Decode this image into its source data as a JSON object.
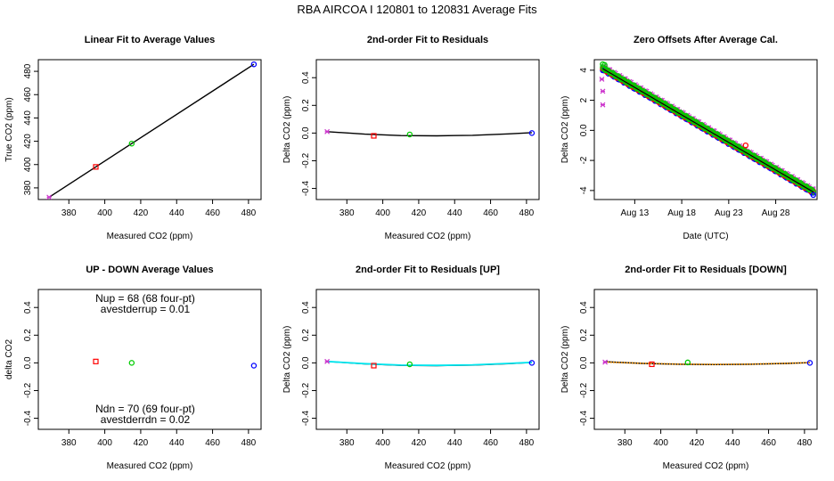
{
  "figure_title": "RBA   AIRCOA I   120801 to 120831    Average Fits",
  "colors": {
    "red": "#ff0000",
    "green": "#00cc00",
    "blue": "#0000ff",
    "magenta": "#cc33cc",
    "cyan": "#00e5ee",
    "black": "#000000",
    "orange": "#ff9900"
  },
  "chart_data": [
    {
      "type": "scatter",
      "title": "Linear Fit to Average Values",
      "xlabel": "Measured CO2 (ppm)",
      "ylabel": "True CO2 (ppm)",
      "xlim": [
        363,
        487
      ],
      "ylim": [
        370,
        490
      ],
      "xticks": [
        380,
        400,
        420,
        440,
        460,
        480
      ],
      "yticks": [
        380,
        400,
        420,
        440,
        460,
        480
      ],
      "lines": [
        {
          "x": [
            369,
            483
          ],
          "y": [
            372,
            486
          ],
          "color": "black"
        }
      ],
      "points": [
        {
          "x": 369,
          "y": 372,
          "color": "magenta",
          "marker": "x"
        },
        {
          "x": 395,
          "y": 398,
          "color": "red",
          "marker": "square"
        },
        {
          "x": 415,
          "y": 418,
          "color": "green",
          "marker": "circle"
        },
        {
          "x": 483,
          "y": 486,
          "color": "blue",
          "marker": "circle"
        }
      ]
    },
    {
      "type": "scatter",
      "title": "2nd-order Fit to Residuals",
      "xlabel": "Measured CO2 (ppm)",
      "ylabel": "Delta CO2 (ppm)",
      "xlim": [
        363,
        487
      ],
      "ylim": [
        -0.48,
        0.53
      ],
      "xticks": [
        380,
        400,
        420,
        440,
        460,
        480
      ],
      "yticks": [
        -0.4,
        -0.2,
        0.0,
        0.2,
        0.4
      ],
      "curves": [
        {
          "x": [
            369,
            390,
            410,
            430,
            450,
            470,
            483
          ],
          "y": [
            0.01,
            -0.008,
            -0.018,
            -0.02,
            -0.016,
            -0.006,
            0.003
          ],
          "color": "black"
        }
      ],
      "points": [
        {
          "x": 369,
          "y": 0.01,
          "color": "magenta",
          "marker": "x"
        },
        {
          "x": 395,
          "y": -0.02,
          "color": "red",
          "marker": "square"
        },
        {
          "x": 415,
          "y": -0.01,
          "color": "green",
          "marker": "circle"
        },
        {
          "x": 483,
          "y": 0.0,
          "color": "blue",
          "marker": "circle"
        }
      ]
    },
    {
      "type": "scatter",
      "title": "Zero Offsets After Average Cal.",
      "xlabel": "Date (UTC)",
      "ylabel": "Delta CO2 (ppm)",
      "xlim": [
        8.7,
        32.4
      ],
      "ylim": [
        -4.6,
        4.7
      ],
      "xticks": [
        13,
        18,
        23,
        28
      ],
      "xticklabels": [
        "Aug 13",
        "Aug 18",
        "Aug 23",
        "Aug 28"
      ],
      "yticks": [
        -4,
        -2,
        0,
        2,
        4
      ],
      "trend": {
        "x": [
          9.6,
          32.0
        ],
        "y": [
          4.1,
          -4.1
        ]
      },
      "clusters": [
        {
          "color": "magenta",
          "marker": "x",
          "offset": 0.15
        },
        {
          "color": "blue",
          "marker": "circle",
          "offset": -0.05
        },
        {
          "color": "red",
          "marker": "circle",
          "offset": 0.0
        },
        {
          "color": "green",
          "marker": "circle",
          "offset": 0.05
        }
      ],
      "extra_points": [
        {
          "x": 9.6,
          "y": 4.4,
          "color": "green",
          "marker": "circle"
        },
        {
          "x": 9.8,
          "y": 4.35,
          "color": "green",
          "marker": "circle"
        },
        {
          "x": 9.5,
          "y": 3.4,
          "color": "magenta",
          "marker": "x"
        },
        {
          "x": 9.6,
          "y": 2.6,
          "color": "magenta",
          "marker": "x"
        },
        {
          "x": 9.6,
          "y": 1.7,
          "color": "magenta",
          "marker": "x"
        },
        {
          "x": 24.8,
          "y": -1.0,
          "color": "red",
          "marker": "circle"
        },
        {
          "x": 32.0,
          "y": -4.3,
          "color": "blue",
          "marker": "circle"
        }
      ]
    },
    {
      "type": "scatter",
      "title": "UP - DOWN Average Values",
      "xlabel": "Measured CO2 (ppm)",
      "ylabel": "delta CO2",
      "xlim": [
        363,
        487
      ],
      "ylim": [
        -0.48,
        0.53
      ],
      "xticks": [
        380,
        400,
        420,
        440,
        460,
        480
      ],
      "yticks": [
        -0.4,
        -0.2,
        0.0,
        0.2,
        0.4
      ],
      "annotations": [
        "Nup = 68 (68 four-pt)",
        "avestderrup =  0.01",
        "Ndn = 70 (69 four-pt)",
        "avestderrdn =  0.02"
      ],
      "points": [
        {
          "x": 395,
          "y": 0.01,
          "color": "red",
          "marker": "square"
        },
        {
          "x": 415,
          "y": 0.0,
          "color": "green",
          "marker": "circle"
        },
        {
          "x": 483,
          "y": -0.02,
          "color": "blue",
          "marker": "circle"
        }
      ]
    },
    {
      "type": "scatter",
      "title": "2nd-order Fit to Residuals [UP]",
      "xlabel": "Measured CO2 (ppm)",
      "ylabel": "Delta CO2 (ppm)",
      "xlim": [
        363,
        487
      ],
      "ylim": [
        -0.48,
        0.53
      ],
      "xticks": [
        380,
        400,
        420,
        440,
        460,
        480
      ],
      "yticks": [
        -0.4,
        -0.2,
        0.0,
        0.2,
        0.4
      ],
      "curves": [
        {
          "x": [
            369,
            390,
            410,
            430,
            450,
            470,
            483
          ],
          "y": [
            0.01,
            -0.008,
            -0.018,
            -0.02,
            -0.016,
            -0.006,
            0.003
          ],
          "color": "black"
        },
        {
          "x": [
            369,
            390,
            410,
            430,
            450,
            470,
            483
          ],
          "y": [
            0.01,
            -0.006,
            -0.016,
            -0.018,
            -0.014,
            -0.004,
            0.004
          ],
          "color": "cyan"
        }
      ],
      "points": [
        {
          "x": 369,
          "y": 0.01,
          "color": "magenta",
          "marker": "x"
        },
        {
          "x": 395,
          "y": -0.02,
          "color": "red",
          "marker": "square"
        },
        {
          "x": 415,
          "y": -0.01,
          "color": "green",
          "marker": "circle"
        },
        {
          "x": 483,
          "y": 0.0,
          "color": "blue",
          "marker": "circle"
        }
      ]
    },
    {
      "type": "scatter",
      "title": "2nd-order Fit to Residuals [DOWN]",
      "xlabel": "Measured CO2 (ppm)",
      "ylabel": "Delta CO2 (ppm)",
      "xlim": [
        363,
        487
      ],
      "ylim": [
        -0.48,
        0.53
      ],
      "xticks": [
        380,
        400,
        420,
        440,
        460,
        480
      ],
      "yticks": [
        -0.4,
        -0.2,
        0.0,
        0.2,
        0.4
      ],
      "curves": [
        {
          "x": [
            369,
            390,
            410,
            430,
            450,
            470,
            483
          ],
          "y": [
            0.008,
            -0.004,
            -0.01,
            -0.012,
            -0.01,
            -0.004,
            0.002
          ],
          "color": "black"
        },
        {
          "x": [
            369,
            390,
            410,
            430,
            450,
            470,
            483
          ],
          "y": [
            0.006,
            -0.003,
            -0.009,
            -0.011,
            -0.009,
            -0.003,
            0.002
          ],
          "color": "orange",
          "dotted": true
        }
      ],
      "points": [
        {
          "x": 369,
          "y": 0.005,
          "color": "magenta",
          "marker": "x"
        },
        {
          "x": 395,
          "y": -0.01,
          "color": "red",
          "marker": "square"
        },
        {
          "x": 415,
          "y": 0.003,
          "color": "green",
          "marker": "circle"
        },
        {
          "x": 483,
          "y": 0.0,
          "color": "blue",
          "marker": "circle"
        }
      ]
    }
  ]
}
